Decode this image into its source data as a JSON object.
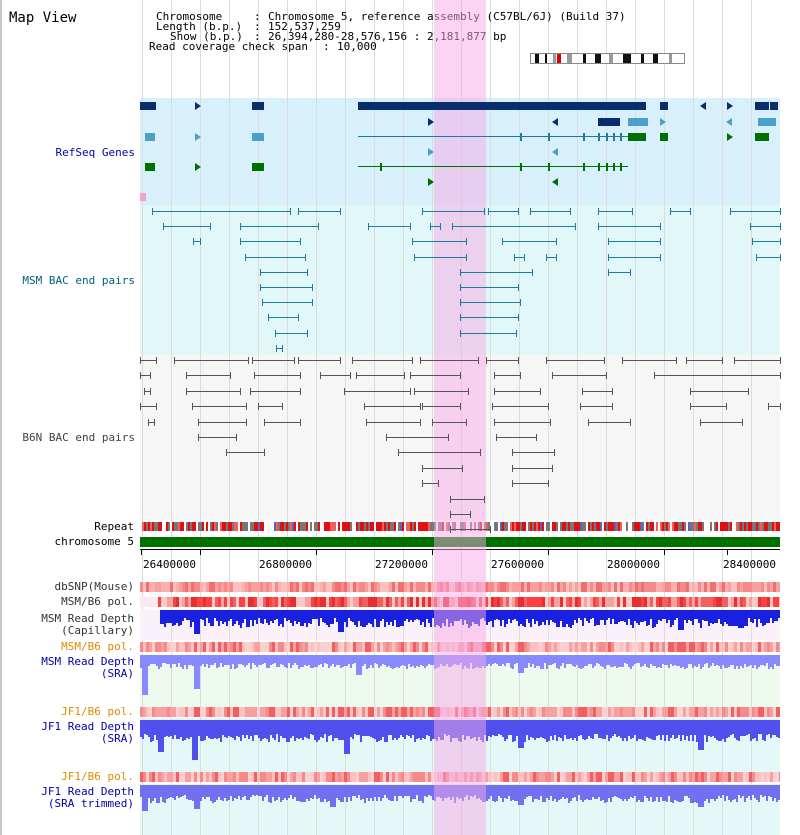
{
  "title": "Map View",
  "header": {
    "chromosome_label": "Chromosome",
    "chromosome_value": "Chromosome 5, reference assembly (C57BL/6J) (Build 37)",
    "length_label": "Length (b.p.)",
    "length_value": "152,537,259",
    "show_label": "Show (b.p.)",
    "show_value": "26,394,280-28,576,156 : 2,181,877 bp",
    "coverage_label": "Read coverage check span",
    "coverage_value": "10,000"
  },
  "tracks": {
    "refseq": "RefSeq Genes",
    "msm_bac": "MSM BAC end pairs",
    "b6n_bac": "B6N BAC end pairs",
    "repeat": "Repeat",
    "chromosome": "chromosome 5",
    "dbsnp": "dbSNP(Mouse)",
    "msm_b6_pol": "MSM/B6 pol.",
    "msm_read_cap_1": "MSM Read Depth",
    "msm_read_cap_2": "(Capillary)",
    "msm_b6_pol_2": "MSM/B6 pol.",
    "msm_read_sra_1": "MSM Read Depth",
    "msm_read_sra_2": "(SRA)",
    "jf1_b6_pol": "JF1/B6 pol.",
    "jf1_read_sra_1": "JF1 Read Depth",
    "jf1_read_sra_2": "(SRA)",
    "jf1_b6_pol_2": "JF1/B6 pol.",
    "jf1_read_trim_1": "JF1 Read Depth",
    "jf1_read_trim_2": "(SRA trimmed)"
  },
  "axis": {
    "ticks": [
      "26400000",
      "26800000",
      "27200000",
      "27600000",
      "28000000",
      "28400000"
    ]
  },
  "colors": {
    "refseq_label": "#0000aa",
    "msm_bac_label": "#00607a",
    "b6n_bac_label": "#404040",
    "pol_orange": "#e08a00",
    "depth_blue": "#0000aa",
    "refseq_bg": "#d8f0fb",
    "msm_bg": "#e2f8f8",
    "b6n_bg": "#f7f7f7",
    "chromosome_bar": "#007000",
    "highlight": "#f4b6e8"
  }
}
